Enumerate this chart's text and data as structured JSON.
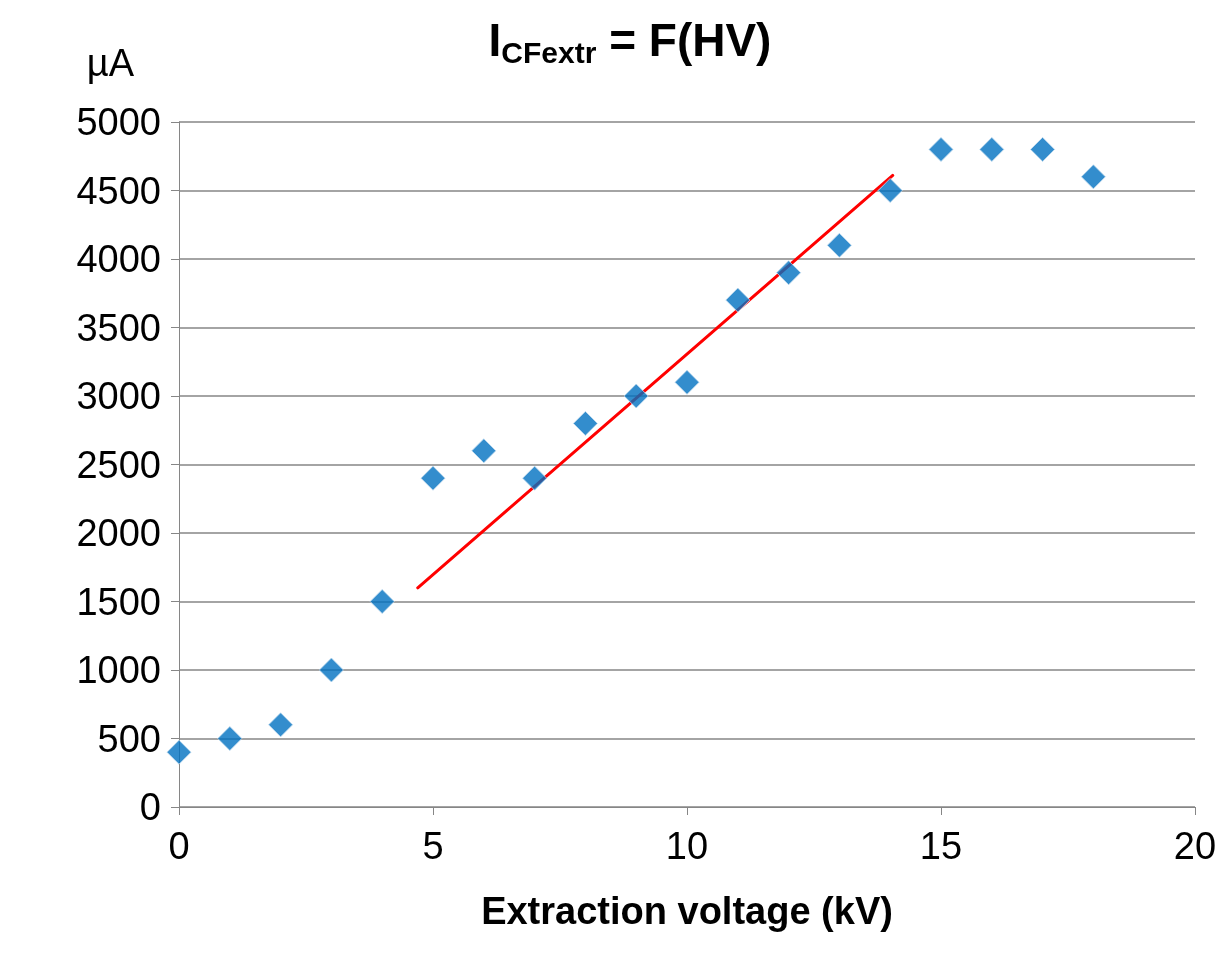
{
  "chart_data": {
    "type": "scatter",
    "title": "I$_{CFextr}$ = F(HV)",
    "xlabel": "Extraction voltage (kV)",
    "ylabel": "µA",
    "series": [
      {
        "color": "#0070c0",
        "x": [
          0,
          1,
          2,
          3,
          4,
          5,
          6,
          7,
          8,
          9,
          10,
          11,
          12,
          13,
          14,
          15,
          16,
          17,
          18
        ],
        "values": [
          400,
          500,
          600,
          1000,
          1500,
          2400,
          2600,
          2400,
          2800,
          3000,
          3100,
          3700,
          3900,
          4100,
          4500,
          4800,
          4800,
          4800,
          4600
        ],
        "marker": "diamond"
      },
      {
        "type": "line",
        "color": "#ff0000",
        "x": [
          4.7,
          14.05
        ],
        "values": [
          1600,
          4610
        ],
        "marker": "none",
        "line_style": "solid"
      }
    ],
    "xlim": [
      0,
      20
    ],
    "xticks": [
      0,
      5,
      10,
      15,
      20
    ],
    "ylim": [
      0,
      5000
    ],
    "yticks": [
      0,
      500,
      1000,
      1500,
      2000,
      2500,
      3000,
      3500,
      4000,
      4500,
      5000
    ],
    "grid": "y"
  }
}
